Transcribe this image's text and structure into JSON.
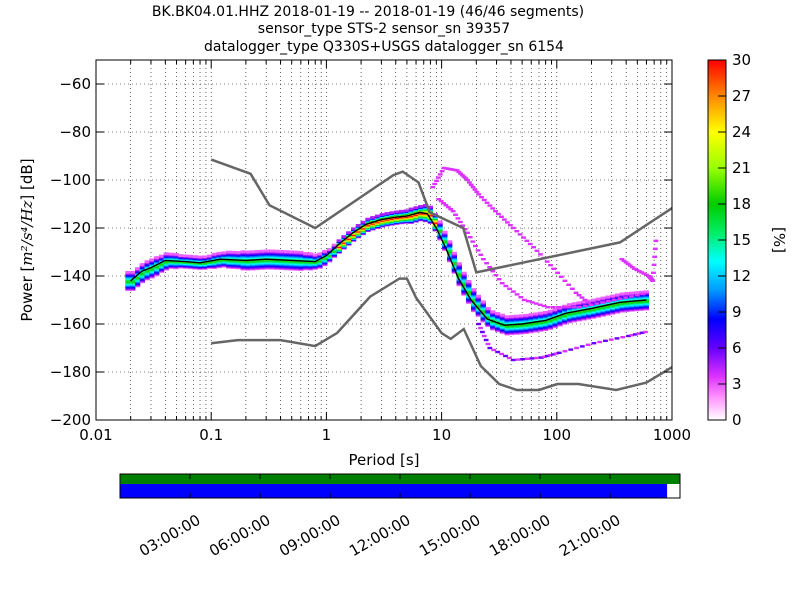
{
  "title": {
    "line1": "BK.BK04.01.HHZ   2018-01-19 -- 2018-01-19  (46/46 segments)",
    "line2": "sensor_type STS-2 sensor_sn 39357",
    "line3": "datalogger_type Q330S+USGS datalogger_sn 6154"
  },
  "chart_data": {
    "type": "heatmap",
    "xlabel": "Period [s]",
    "ylabel_prefix": "Power [",
    "ylabel_units": "m²/s⁴/Hz",
    "ylabel_suffix": "] [dB]",
    "x_scale": "log",
    "xlim": [
      0.01,
      1000
    ],
    "ylim": [
      -200,
      -50
    ],
    "x_ticks": [
      0.01,
      0.1,
      1,
      10,
      100,
      1000
    ],
    "x_tick_labels": [
      "0.01",
      "0.1",
      "1",
      "10",
      "100",
      "1000"
    ],
    "y_ticks": [
      -200,
      -180,
      -160,
      -140,
      -120,
      -100,
      -80,
      -60
    ],
    "y_tick_labels": [
      "−200",
      "−180",
      "−160",
      "−140",
      "−120",
      "−100",
      "−80",
      "−60"
    ],
    "grid": "dotted",
    "colorbar": {
      "label": "[%]",
      "range": [
        0,
        30
      ],
      "ticks": [
        0,
        3,
        6,
        9,
        12,
        15,
        18,
        21,
        24,
        27,
        30
      ],
      "tick_labels": [
        "0",
        "3",
        "6",
        "9",
        "12",
        "15",
        "18",
        "21",
        "24",
        "27",
        "30"
      ],
      "colormap": "pqlx"
    },
    "high_noise_model": [
      [
        0.1,
        -91.5
      ],
      [
        0.22,
        -97.4
      ],
      [
        0.32,
        -110.5
      ],
      [
        0.8,
        -120
      ],
      [
        3.8,
        -98
      ],
      [
        4.6,
        -96.5
      ],
      [
        6.3,
        -101
      ],
      [
        7.9,
        -113.5
      ],
      [
        15.4,
        -120
      ],
      [
        20,
        -138.5
      ],
      [
        354,
        -126
      ],
      [
        10000,
        -80
      ]
    ],
    "low_noise_model": [
      [
        0.1,
        -168
      ],
      [
        0.17,
        -166.7
      ],
      [
        0.4,
        -166.7
      ],
      [
        0.8,
        -169.2
      ],
      [
        1.24,
        -163.7
      ],
      [
        2.4,
        -148.6
      ],
      [
        4.3,
        -141.1
      ],
      [
        5,
        -141.1
      ],
      [
        6,
        -149
      ],
      [
        10,
        -163.8
      ],
      [
        12,
        -166.2
      ],
      [
        15.6,
        -162.1
      ],
      [
        21.9,
        -177.5
      ],
      [
        31.6,
        -185
      ],
      [
        45,
        -187.5
      ],
      [
        70,
        -187.5
      ],
      [
        101,
        -185
      ],
      [
        154,
        -185
      ],
      [
        328,
        -187.5
      ],
      [
        600,
        -184.4
      ],
      [
        1000,
        -178
      ]
    ],
    "mode_line": [
      [
        0.02,
        -142
      ],
      [
        0.025,
        -138
      ],
      [
        0.03,
        -136.5
      ],
      [
        0.04,
        -133.5
      ],
      [
        0.06,
        -134
      ],
      [
        0.08,
        -134.5
      ],
      [
        0.12,
        -133
      ],
      [
        0.2,
        -133.5
      ],
      [
        0.3,
        -133
      ],
      [
        0.5,
        -133.5
      ],
      [
        0.8,
        -134
      ],
      [
        1.0,
        -131.5
      ],
      [
        1.3,
        -126.5
      ],
      [
        1.7,
        -122
      ],
      [
        2.2,
        -118.5
      ],
      [
        3.0,
        -116.5
      ],
      [
        4.0,
        -115.5
      ],
      [
        5.0,
        -115
      ],
      [
        6.5,
        -113.5
      ],
      [
        7.5,
        -114
      ],
      [
        9.0,
        -120
      ],
      [
        11,
        -129
      ],
      [
        14,
        -141
      ],
      [
        18,
        -150
      ],
      [
        25,
        -158
      ],
      [
        35,
        -160.5
      ],
      [
        50,
        -160
      ],
      [
        80,
        -158.5
      ],
      [
        120,
        -155.5
      ],
      [
        200,
        -153.5
      ],
      [
        350,
        -151
      ],
      [
        450,
        -150.5
      ],
      [
        600,
        -150
      ]
    ],
    "spread": [
      [
        0.02,
        3
      ],
      [
        0.03,
        3
      ],
      [
        0.05,
        2
      ],
      [
        0.1,
        2
      ],
      [
        0.2,
        3
      ],
      [
        0.5,
        3
      ],
      [
        1,
        2
      ],
      [
        2,
        2
      ],
      [
        5,
        2
      ],
      [
        10,
        3
      ],
      [
        15,
        4
      ],
      [
        25,
        3
      ],
      [
        50,
        3
      ],
      [
        100,
        3
      ],
      [
        200,
        3
      ],
      [
        400,
        3
      ],
      [
        600,
        3
      ]
    ],
    "scatter_branches": [
      {
        "name": "high",
        "points": [
          [
            8,
            -103
          ],
          [
            10,
            -95
          ],
          [
            13,
            -96
          ],
          [
            16,
            -100
          ],
          [
            20,
            -106
          ],
          [
            28,
            -113
          ],
          [
            40,
            -120
          ],
          [
            60,
            -128
          ],
          [
            90,
            -137
          ],
          [
            140,
            -147
          ],
          [
            200,
            -153
          ]
        ]
      },
      {
        "name": "upper",
        "points": [
          [
            9,
            -108
          ],
          [
            12,
            -113
          ],
          [
            16,
            -122
          ],
          [
            22,
            -133
          ],
          [
            32,
            -143
          ],
          [
            50,
            -150
          ],
          [
            80,
            -153
          ],
          [
            150,
            -153
          ],
          [
            300,
            -150
          ],
          [
            600,
            -147
          ]
        ]
      },
      {
        "name": "low",
        "points": [
          [
            20,
            -160
          ],
          [
            25,
            -170
          ],
          [
            40,
            -175
          ],
          [
            70,
            -174
          ],
          [
            100,
            -172
          ],
          [
            200,
            -168
          ],
          [
            400,
            -165
          ],
          [
            600,
            -163
          ]
        ]
      },
      {
        "name": "flat-high",
        "points": [
          [
            350,
            -133
          ],
          [
            450,
            -137
          ],
          [
            600,
            -140
          ],
          [
            650,
            -142
          ],
          [
            700,
            -122
          ]
        ]
      }
    ]
  },
  "timeline": {
    "ticks": [
      "03:00:00",
      "06:00:00",
      "09:00:00",
      "12:00:00",
      "15:00:00",
      "18:00:00",
      "21:00:00"
    ],
    "top_bar_color": "#008000",
    "bottom_bar_color": "#0000ff",
    "bottom_bar_fill_fraction": 0.977
  },
  "colors": {
    "noise_model": "#666666",
    "mode_line": "#000000"
  }
}
